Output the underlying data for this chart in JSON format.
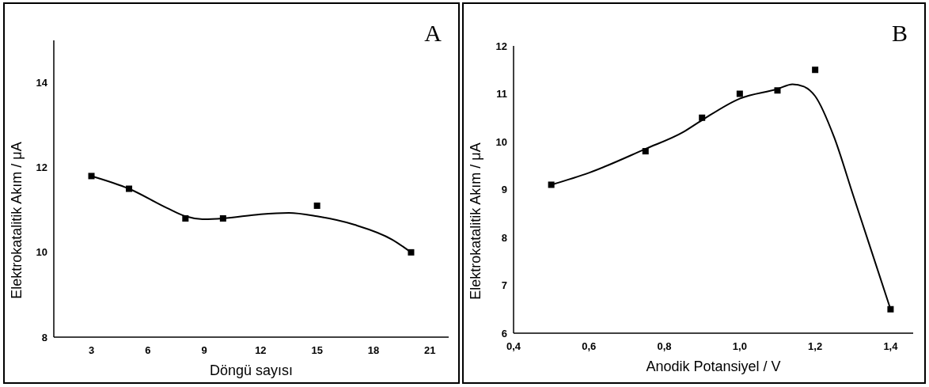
{
  "chart_data": [
    {
      "type": "scatter",
      "xlabel": "Döngü sayısı",
      "ylabel": "Elektrokatalitik Akım / μA",
      "annotations": [
        "A"
      ],
      "xlim": [
        1,
        22
      ],
      "ylim": [
        8,
        15
      ],
      "xticks": [
        3,
        6,
        9,
        12,
        15,
        18,
        21
      ],
      "yticks": [
        8,
        10,
        12,
        14
      ],
      "series": [
        {
          "type": "scatter",
          "marker": "square",
          "color": "#000000",
          "x": [
            3,
            5,
            8,
            10,
            15,
            20
          ],
          "values": [
            11.8,
            11.5,
            10.8,
            10.8,
            11.1,
            10.0
          ]
        },
        {
          "type": "line",
          "marker": "none",
          "line_style": "solid",
          "color": "#000000",
          "x": [
            3,
            5,
            7,
            8,
            9,
            10,
            12,
            13.5,
            15,
            17,
            19,
            20
          ],
          "values": [
            11.8,
            11.5,
            11.05,
            10.85,
            10.78,
            10.8,
            10.9,
            10.93,
            10.85,
            10.65,
            10.3,
            10.0
          ]
        }
      ]
    },
    {
      "type": "scatter",
      "xlabel": "Anodik Potansiyel / V",
      "ylabel": "Elektrokatalitik Akım / μA",
      "annotations": [
        "B"
      ],
      "xlim": [
        0.4,
        1.46
      ],
      "ylim": [
        6,
        12
      ],
      "xticks": [
        {
          "value": 0.4,
          "label": "0,4"
        },
        {
          "value": 0.6,
          "label": "0,6"
        },
        {
          "value": 0.8,
          "label": "0,8"
        },
        {
          "value": 1.0,
          "label": "1,0"
        },
        {
          "value": 1.2,
          "label": "1,2"
        },
        {
          "value": 1.4,
          "label": "1,4"
        }
      ],
      "yticks": [
        6,
        7,
        8,
        9,
        10,
        11,
        12
      ],
      "series": [
        {
          "type": "scatter",
          "marker": "square",
          "color": "#000000",
          "x": [
            0.5,
            0.75,
            0.9,
            1.0,
            1.1,
            1.2,
            1.4
          ],
          "values": [
            9.1,
            9.8,
            10.5,
            11.0,
            11.07,
            11.5,
            6.5
          ]
        },
        {
          "type": "line",
          "marker": "none",
          "line_style": "solid",
          "color": "#000000",
          "x": [
            0.5,
            0.6,
            0.75,
            0.85,
            0.9,
            1.0,
            1.1,
            1.14,
            1.17,
            1.2,
            1.25,
            1.3,
            1.35,
            1.4
          ],
          "values": [
            9.1,
            9.35,
            9.85,
            10.2,
            10.45,
            10.9,
            11.1,
            11.2,
            11.15,
            10.95,
            10.1,
            8.9,
            7.7,
            6.5
          ]
        }
      ]
    }
  ]
}
